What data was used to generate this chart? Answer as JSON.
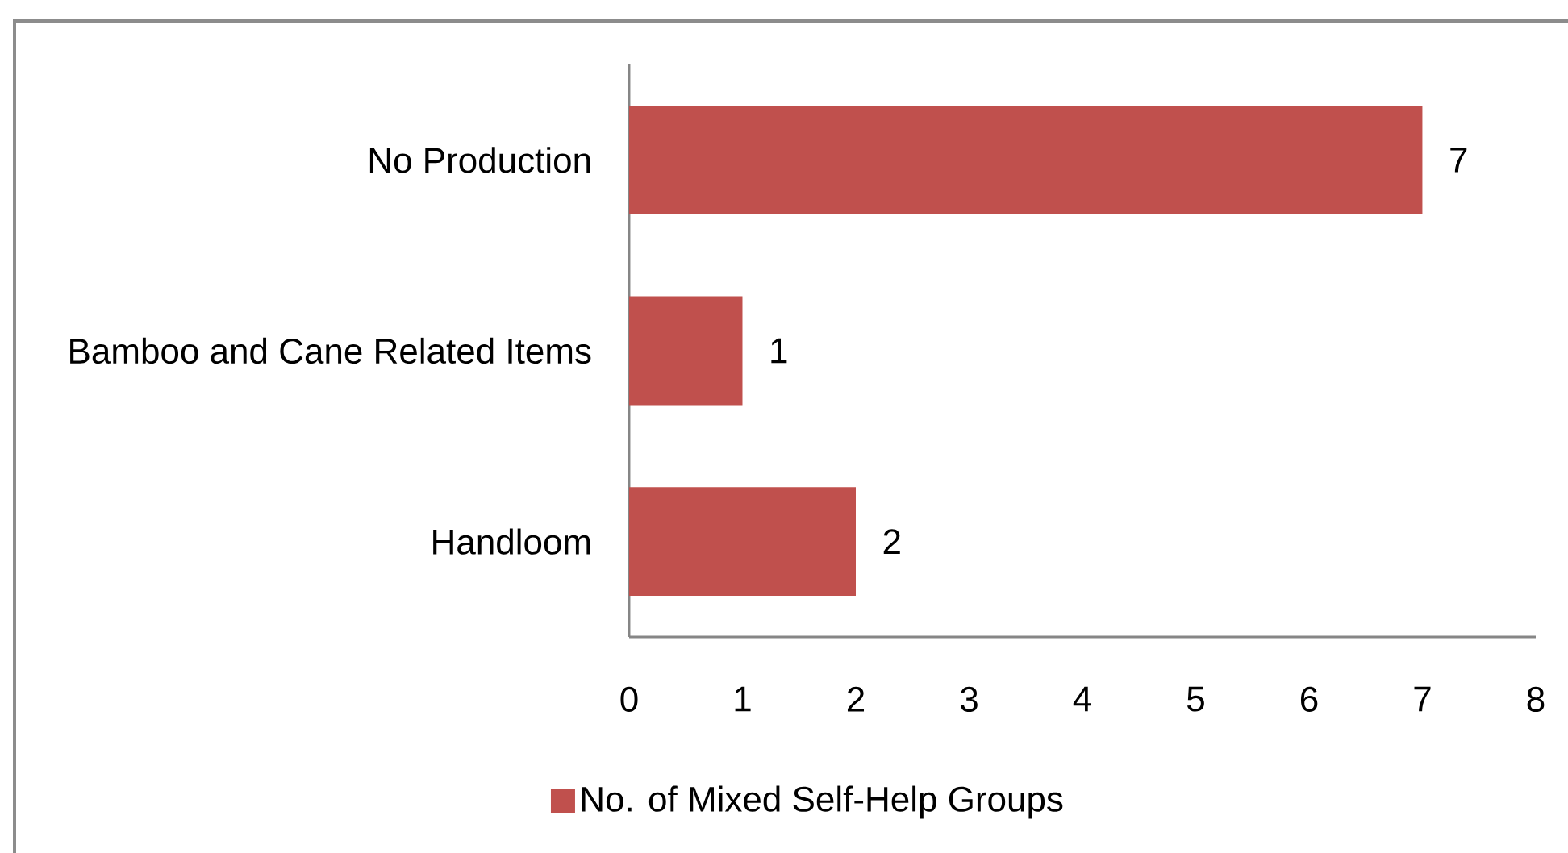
{
  "chart_data": {
    "type": "bar",
    "orientation": "horizontal",
    "categories": [
      "No  Production",
      "Bamboo and Cane Related Items",
      "Handloom"
    ],
    "series": [
      {
        "name": "No. of Mixed Self-Help Groups",
        "color": "#c0504d",
        "values": [
          7,
          1,
          2
        ]
      }
    ],
    "xlim": [
      0,
      8
    ],
    "xticks": [
      0,
      1,
      2,
      3,
      4,
      5,
      6,
      7,
      8
    ],
    "data_labels": true,
    "legend": "bottom"
  }
}
